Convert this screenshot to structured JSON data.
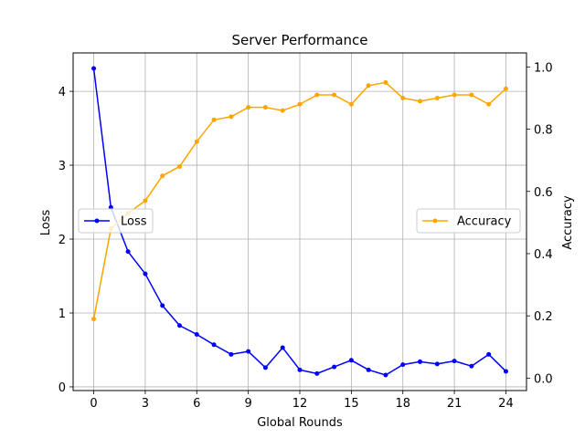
{
  "chart_data": {
    "type": "line",
    "title": "Server Performance",
    "xlabel": "Global Rounds",
    "ylabel_left": "Loss",
    "ylabel_right": "Accuracy",
    "x": [
      0,
      1,
      2,
      3,
      4,
      5,
      6,
      7,
      8,
      9,
      10,
      11,
      12,
      13,
      14,
      15,
      16,
      17,
      18,
      19,
      20,
      21,
      22,
      23,
      24
    ],
    "xticks": [
      0,
      3,
      6,
      9,
      12,
      15,
      18,
      21,
      24
    ],
    "xlim": [
      -1.2,
      25.2
    ],
    "ylim_left": [
      -0.05,
      4.52
    ],
    "yticks_left": [
      0,
      1,
      2,
      3,
      4
    ],
    "ylim_right": [
      -0.04,
      1.045
    ],
    "yticks_right": [
      "0.0",
      "0.2",
      "0.4",
      "0.6",
      "0.8",
      "1.0"
    ],
    "grid": true,
    "series": [
      {
        "name": "Loss",
        "axis": "left",
        "color": "#0000ff",
        "values": [
          4.31,
          2.43,
          1.83,
          1.53,
          1.1,
          0.83,
          0.71,
          0.57,
          0.44,
          0.48,
          0.26,
          0.53,
          0.23,
          0.18,
          0.27,
          0.36,
          0.23,
          0.16,
          0.3,
          0.34,
          0.31,
          0.35,
          0.28,
          0.44,
          0.21
        ],
        "legend": "left-center"
      },
      {
        "name": "Accuracy",
        "axis": "right",
        "color": "#ffa500",
        "values": [
          0.19,
          0.48,
          0.53,
          0.57,
          0.65,
          0.68,
          0.76,
          0.83,
          0.84,
          0.87,
          0.87,
          0.86,
          0.88,
          0.91,
          0.91,
          0.88,
          0.94,
          0.95,
          0.9,
          0.89,
          0.9,
          0.91,
          0.91,
          0.88,
          0.93
        ],
        "legend": "right-center"
      }
    ]
  }
}
